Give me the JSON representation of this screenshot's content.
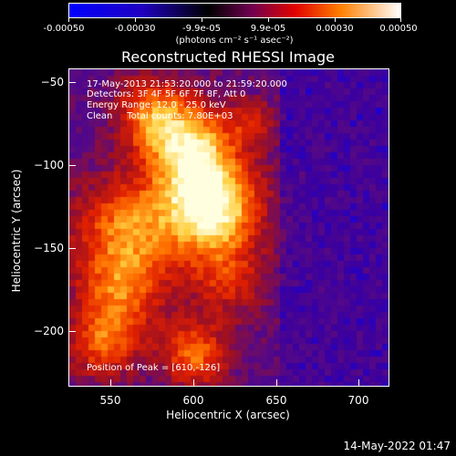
{
  "colorbar": {
    "tick_labels": [
      "-0.00050",
      "-0.00030",
      "-9.9e-05",
      "9.9e-05",
      "0.00030",
      "0.00050"
    ],
    "unit": "(photons cm⁻² s⁻¹ asec⁻²)"
  },
  "title": "Reconstructed RHESSI Image",
  "info": {
    "line1": "17-May-2013 21:53:20.000 to 21:59:20.000",
    "line2": "Detectors: 3F 4F 5F 6F 7F 8F, Att 0",
    "line3": "Energy Range: 12.0 - 25.0 keV",
    "line4": "Clean     Total counts: 7.80E+03",
    "peak": "Position of Peak = [610,-126]"
  },
  "chart_data": {
    "type": "heatmap",
    "title": "Reconstructed RHESSI Image",
    "xlabel": "Heliocentric X (arcsec)",
    "ylabel": "Heliocentric Y (arcsec)",
    "xlim": [
      525,
      717
    ],
    "ylim": [
      -234,
      -43
    ],
    "x_ticks": [
      550,
      600,
      650,
      700
    ],
    "y_ticks": [
      -50,
      -100,
      -150,
      -200
    ],
    "x_tick_labels": [
      "550",
      "600",
      "650",
      "700"
    ],
    "y_tick_labels": [
      "−50",
      "−100",
      "−150",
      "−200"
    ],
    "peak": [
      610,
      -126
    ],
    "colorscale": [
      "#0000ff",
      "#3a00a0",
      "#5a0a80",
      "#a01020",
      "#e02000",
      "#ff7000",
      "#ffd040",
      "#ffffe0"
    ]
  },
  "footer": {
    "timestamp": "14-May-2022 01:47"
  }
}
